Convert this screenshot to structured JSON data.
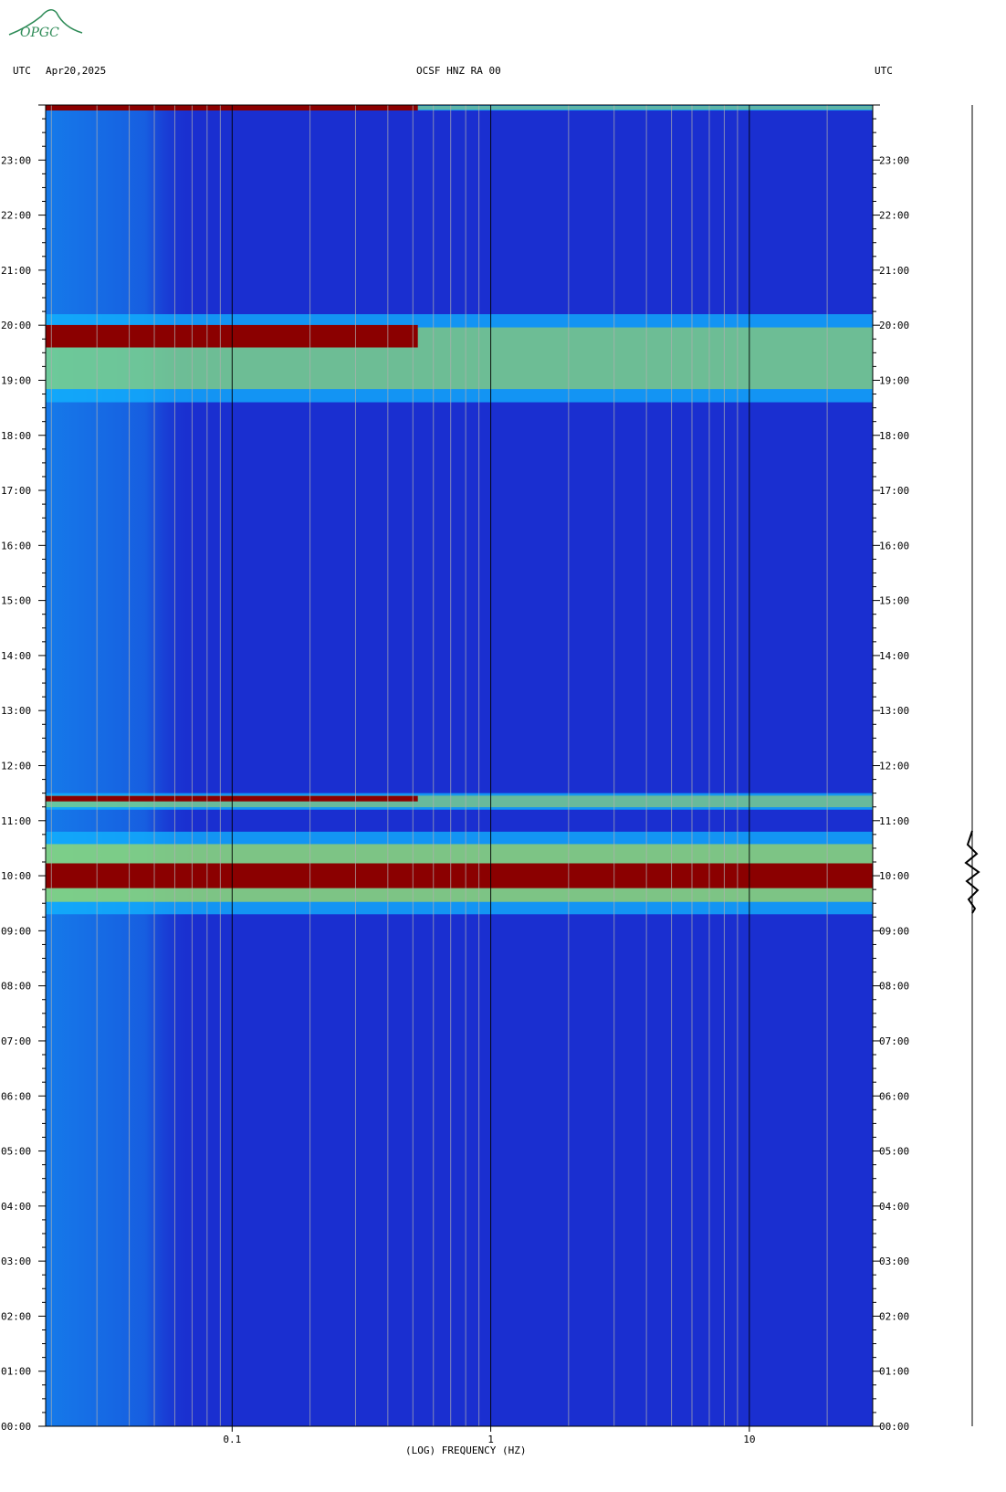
{
  "header": {
    "left_label": "UTC",
    "date": "Apr20,2025",
    "station": "OCSF HNZ RA 00",
    "right_label": "UTC"
  },
  "logo": {
    "text": "OPGC",
    "color": "#2e8b57"
  },
  "colors": {
    "background": "#1f3fd8",
    "low": "#1a2fd0",
    "mid": "#11b7ff",
    "high": "#ffff00",
    "peak": "#8b0000",
    "grid": "#b0b0b0"
  },
  "chart_data": {
    "type": "heatmap",
    "title": "OCSF HNZ RA 00",
    "xlabel": "(LOG) FREQUENCY (HZ)",
    "ylabel": "UTC",
    "x_scale": "log",
    "xlim": [
      0.019,
      30
    ],
    "ylim_hours": [
      0,
      24
    ],
    "x_tick_labels": [
      "0.1",
      "1",
      "10"
    ],
    "x_tick_values": [
      0.1,
      1,
      10
    ],
    "y_tick_labels": [
      "00:00",
      "01:00",
      "02:00",
      "03:00",
      "04:00",
      "05:00",
      "06:00",
      "07:00",
      "08:00",
      "09:00",
      "10:00",
      "11:00",
      "12:00",
      "13:00",
      "14:00",
      "15:00",
      "16:00",
      "17:00",
      "18:00",
      "19:00",
      "20:00",
      "21:00",
      "22:00",
      "23:00"
    ],
    "y_tick_hours": [
      0,
      1,
      2,
      3,
      4,
      5,
      6,
      7,
      8,
      9,
      10,
      11,
      12,
      13,
      14,
      15,
      16,
      17,
      18,
      19,
      20,
      21,
      22,
      23
    ],
    "events": [
      {
        "start_hour": 9.3,
        "end_hour": 10.8,
        "peak_hour": 10.0,
        "intensity": 1.0
      },
      {
        "start_hour": 11.2,
        "end_hour": 11.5,
        "peak_hour": 11.4,
        "intensity": 0.8
      },
      {
        "start_hour": 18.6,
        "end_hour": 20.2,
        "peak_hour": 19.8,
        "intensity": 0.85
      },
      {
        "start_hour": 23.9,
        "end_hour": 24.0,
        "peak_hour": 23.95,
        "intensity": 0.7
      }
    ]
  }
}
